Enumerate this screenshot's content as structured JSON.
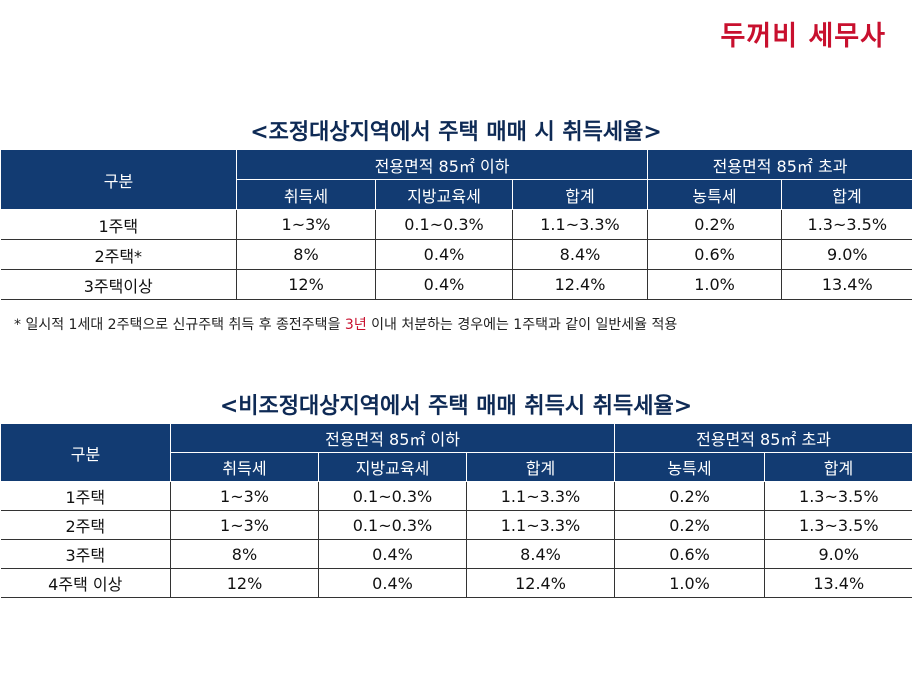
{
  "brand": "두꺼비 세무사",
  "section1": {
    "title": "<조정대상지역에서 주택 매매 시 취득세율>",
    "header": {
      "category": "구분",
      "group1": "전용면적 85㎡ 이하",
      "group2": "전용면적 85㎡ 초과",
      "cols": [
        "취득세",
        "지방교육세",
        "합계",
        "농특세",
        "합계"
      ]
    },
    "rows": [
      {
        "label": "1주택",
        "cells": [
          "1~3%",
          "0.1~0.3%",
          "1.1~3.3%",
          "0.2%",
          "1.3~3.5%"
        ]
      },
      {
        "label": "2주택*",
        "cells": [
          "8%",
          "0.4%",
          "8.4%",
          "0.6%",
          "9.0%"
        ]
      },
      {
        "label": "3주택이상",
        "cells": [
          "12%",
          "0.4%",
          "12.4%",
          "1.0%",
          "13.4%"
        ]
      }
    ],
    "note": {
      "before": "* 일시적 1세대 2주택으로 신규주택 취득 후 종전주택을 ",
      "highlight": "3년",
      "after": " 이내 처분하는 경우에는 1주택과 같이 일반세율 적용"
    }
  },
  "section2": {
    "title": "<비조정대상지역에서 주택 매매 취득시 취득세율>",
    "header": {
      "category": "구분",
      "group1": "전용면적 85㎡ 이하",
      "group2": "전용면적 85㎡ 초과",
      "cols": [
        "취득세",
        "지방교육세",
        "합계",
        "농특세",
        "합계"
      ]
    },
    "rows": [
      {
        "label": "1주택",
        "cells": [
          "1~3%",
          "0.1~0.3%",
          "1.1~3.3%",
          "0.2%",
          "1.3~3.5%"
        ]
      },
      {
        "label": "2주택",
        "cells": [
          "1~3%",
          "0.1~0.3%",
          "1.1~3.3%",
          "0.2%",
          "1.3~3.5%"
        ]
      },
      {
        "label": "3주택",
        "cells": [
          "8%",
          "0.4%",
          "8.4%",
          "0.6%",
          "9.0%"
        ]
      },
      {
        "label": "4주택 이상",
        "cells": [
          "12%",
          "0.4%",
          "12.4%",
          "1.0%",
          "13.4%"
        ]
      }
    ]
  },
  "colors": {
    "header_bg": "#123b72",
    "brand": "#c8102e",
    "title": "#0e2a55"
  }
}
